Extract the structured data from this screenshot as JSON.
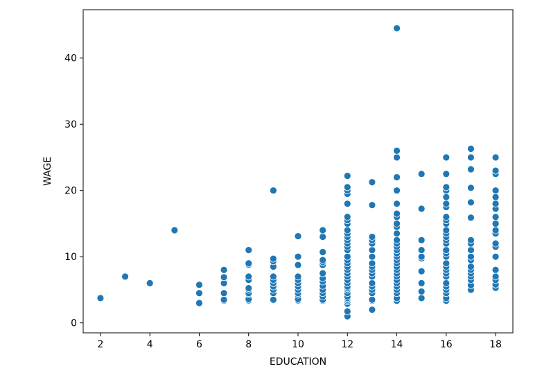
{
  "chart_data": {
    "type": "scatter",
    "title": "",
    "xlabel": "EDUCATION",
    "ylabel": "WAGE",
    "xlim": [
      1.3,
      18.7
    ],
    "ylim": [
      -1.5,
      47.3
    ],
    "xticks": [
      2,
      4,
      6,
      8,
      10,
      12,
      14,
      16,
      18
    ],
    "yticks": [
      0,
      10,
      20,
      30,
      40
    ],
    "grid": false,
    "legend": "none",
    "marker_color": "#1f77b4",
    "series": [
      {
        "points": [
          [
            2,
            3.75
          ],
          [
            3,
            7.0
          ],
          [
            4,
            6.0
          ],
          [
            5,
            14.0
          ],
          [
            6,
            3.0
          ],
          [
            6,
            4.5
          ],
          [
            6,
            5.75
          ],
          [
            7,
            3.35
          ],
          [
            7,
            3.5
          ],
          [
            7,
            4.5
          ],
          [
            7,
            6.0
          ],
          [
            7,
            6.9
          ],
          [
            7,
            8.0
          ],
          [
            8,
            3.4
          ],
          [
            8,
            3.6
          ],
          [
            8,
            4.35
          ],
          [
            8,
            4.5
          ],
          [
            8,
            5.0
          ],
          [
            8,
            5.25
          ],
          [
            8,
            6.5
          ],
          [
            8,
            7.0
          ],
          [
            8,
            8.8
          ],
          [
            8,
            9.0
          ],
          [
            8,
            11.0
          ],
          [
            9,
            3.4
          ],
          [
            9,
            3.5
          ],
          [
            9,
            4.5
          ],
          [
            9,
            5.0
          ],
          [
            9,
            5.5
          ],
          [
            9,
            6.0
          ],
          [
            9,
            6.5
          ],
          [
            9,
            7.0
          ],
          [
            9,
            8.5
          ],
          [
            9,
            9.3
          ],
          [
            9,
            9.7
          ],
          [
            9,
            20.0
          ],
          [
            10,
            3.4
          ],
          [
            10,
            3.6
          ],
          [
            10,
            4.25
          ],
          [
            10,
            4.5
          ],
          [
            10,
            5.0
          ],
          [
            10,
            5.5
          ],
          [
            10,
            6.0
          ],
          [
            10,
            6.5
          ],
          [
            10,
            7.0
          ],
          [
            10,
            8.75
          ],
          [
            10,
            10.0
          ],
          [
            10,
            13.1
          ],
          [
            11,
            3.35
          ],
          [
            11,
            3.5
          ],
          [
            11,
            4.0
          ],
          [
            11,
            4.5
          ],
          [
            11,
            5.0
          ],
          [
            11,
            5.6
          ],
          [
            11,
            6.25
          ],
          [
            11,
            6.75
          ],
          [
            11,
            7.5
          ],
          [
            11,
            8.75
          ],
          [
            11,
            9.2
          ],
          [
            11,
            9.5
          ],
          [
            11,
            10.7
          ],
          [
            11,
            13.0
          ],
          [
            11,
            14.0
          ],
          [
            12,
            1.0
          ],
          [
            12,
            1.75
          ],
          [
            12,
            2.9
          ],
          [
            12,
            3.25
          ],
          [
            12,
            3.5
          ],
          [
            12,
            3.75
          ],
          [
            12,
            4.0
          ],
          [
            12,
            4.5
          ],
          [
            12,
            5.0
          ],
          [
            12,
            5.25
          ],
          [
            12,
            5.5
          ],
          [
            12,
            6.0
          ],
          [
            12,
            6.5
          ],
          [
            12,
            7.0
          ],
          [
            12,
            7.5
          ],
          [
            12,
            8.0
          ],
          [
            12,
            8.5
          ],
          [
            12,
            9.0
          ],
          [
            12,
            9.5
          ],
          [
            12,
            10.0
          ],
          [
            12,
            11.0
          ],
          [
            12,
            11.5
          ],
          [
            12,
            12.0
          ],
          [
            12,
            12.5
          ],
          [
            12,
            13.0
          ],
          [
            12,
            13.5
          ],
          [
            12,
            14.0
          ],
          [
            12,
            15.0
          ],
          [
            12,
            15.5
          ],
          [
            12,
            16.0
          ],
          [
            12,
            18.0
          ],
          [
            12,
            19.5
          ],
          [
            12,
            20.0
          ],
          [
            12,
            20.5
          ],
          [
            12,
            22.2
          ],
          [
            13,
            2.0
          ],
          [
            13,
            3.35
          ],
          [
            13,
            3.5
          ],
          [
            13,
            4.5
          ],
          [
            13,
            5.0
          ],
          [
            13,
            5.5
          ],
          [
            13,
            6.0
          ],
          [
            13,
            7.0
          ],
          [
            13,
            7.5
          ],
          [
            13,
            8.0
          ],
          [
            13,
            8.5
          ],
          [
            13,
            9.0
          ],
          [
            13,
            10.0
          ],
          [
            13,
            11.0
          ],
          [
            13,
            12.0
          ],
          [
            13,
            12.5
          ],
          [
            13,
            13.0
          ],
          [
            13,
            17.8
          ],
          [
            13,
            21.25
          ],
          [
            14,
            3.35
          ],
          [
            14,
            3.75
          ],
          [
            14,
            4.5
          ],
          [
            14,
            5.0
          ],
          [
            14,
            5.5
          ],
          [
            14,
            6.0
          ],
          [
            14,
            6.5
          ],
          [
            14,
            7.0
          ],
          [
            14,
            7.5
          ],
          [
            14,
            8.0
          ],
          [
            14,
            8.5
          ],
          [
            14,
            9.0
          ],
          [
            14,
            9.5
          ],
          [
            14,
            10.0
          ],
          [
            14,
            10.5
          ],
          [
            14,
            11.0
          ],
          [
            14,
            11.5
          ],
          [
            14,
            12.0
          ],
          [
            14,
            12.5
          ],
          [
            14,
            13.5
          ],
          [
            14,
            14.5
          ],
          [
            14,
            15.0
          ],
          [
            14,
            16.0
          ],
          [
            14,
            16.5
          ],
          [
            14,
            18.0
          ],
          [
            14,
            20.0
          ],
          [
            14,
            22.0
          ],
          [
            14,
            25.0
          ],
          [
            14,
            26.0
          ],
          [
            14,
            44.5
          ],
          [
            15,
            3.75
          ],
          [
            15,
            4.75
          ],
          [
            15,
            6.0
          ],
          [
            15,
            7.8
          ],
          [
            15,
            9.75
          ],
          [
            15,
            10.0
          ],
          [
            15,
            11.0
          ],
          [
            15,
            12.5
          ],
          [
            15,
            17.25
          ],
          [
            15,
            22.5
          ],
          [
            16,
            3.35
          ],
          [
            16,
            3.75
          ],
          [
            16,
            4.5
          ],
          [
            16,
            5.0
          ],
          [
            16,
            5.5
          ],
          [
            16,
            6.0
          ],
          [
            16,
            7.0
          ],
          [
            16,
            7.5
          ],
          [
            16,
            8.0
          ],
          [
            16,
            8.5
          ],
          [
            16,
            9.0
          ],
          [
            16,
            10.0
          ],
          [
            16,
            10.5
          ],
          [
            16,
            11.0
          ],
          [
            16,
            12.0
          ],
          [
            16,
            12.5
          ],
          [
            16,
            13.0
          ],
          [
            16,
            13.5
          ],
          [
            16,
            14.0
          ],
          [
            16,
            15.0
          ],
          [
            16,
            15.5
          ],
          [
            16,
            16.0
          ],
          [
            16,
            17.5
          ],
          [
            16,
            18.0
          ],
          [
            16,
            19.0
          ],
          [
            16,
            20.0
          ],
          [
            16,
            20.5
          ],
          [
            16,
            22.5
          ],
          [
            16,
            25.0
          ],
          [
            17,
            5.0
          ],
          [
            17,
            5.7
          ],
          [
            17,
            6.5
          ],
          [
            17,
            7.0
          ],
          [
            17,
            7.5
          ],
          [
            17,
            8.0
          ],
          [
            17,
            8.5
          ],
          [
            17,
            9.5
          ],
          [
            17,
            10.0
          ],
          [
            17,
            11.0
          ],
          [
            17,
            12.0
          ],
          [
            17,
            12.5
          ],
          [
            17,
            15.9
          ],
          [
            17,
            18.2
          ],
          [
            17,
            20.4
          ],
          [
            17,
            23.2
          ],
          [
            17,
            25.0
          ],
          [
            17,
            26.3
          ],
          [
            18,
            5.3
          ],
          [
            18,
            5.8
          ],
          [
            18,
            6.5
          ],
          [
            18,
            7.0
          ],
          [
            18,
            8.0
          ],
          [
            18,
            10.0
          ],
          [
            18,
            11.5
          ],
          [
            18,
            12.0
          ],
          [
            18,
            13.5
          ],
          [
            18,
            14.0
          ],
          [
            18,
            15.0
          ],
          [
            18,
            16.0
          ],
          [
            18,
            17.25
          ],
          [
            18,
            18.0
          ],
          [
            18,
            19.0
          ],
          [
            18,
            20.0
          ],
          [
            18,
            22.5
          ],
          [
            18,
            23.0
          ],
          [
            18,
            25.0
          ]
        ]
      }
    ]
  }
}
